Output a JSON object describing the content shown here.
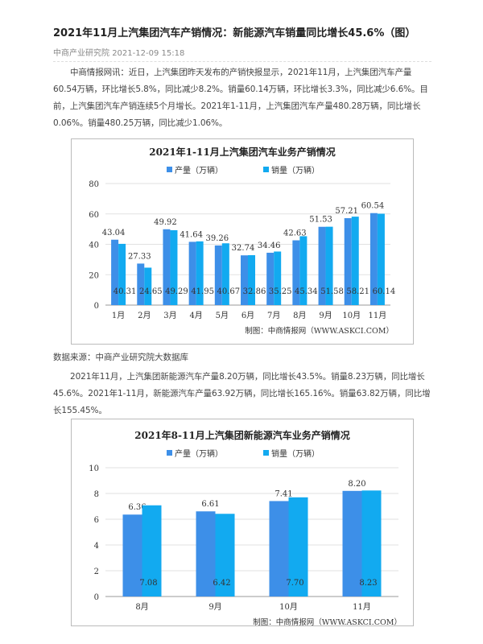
{
  "article": {
    "title": "2021年11月上汽集团汽车产销情况：新能源汽车销量同比增长45.6%（图）",
    "source": "中商产业研究院",
    "datetime": "2021-12-09 15:18",
    "para1": "中商情报网讯：近日，上汽集团昨天发布的产销快报显示，2021年11月，上汽集团汽车产量60.54万辆，环比增长5.8%，同比减少8.2%。销量60.14万辆，环比增长3.3%，同比减少6.6%。目前，上汽集团汽车产销连续5个月增长。2021年1-11月，上汽集团汽车产量480.28万辆，同比增长0.06%。销量480.25万辆，同比减少1.06%。",
    "data_source": "数据来源：中商产业研究院大数据库",
    "para2": "2021年11月，上汽集团新能源汽车产量8.20万辆，同比增长43.5%。销量8.23万辆，同比增长45.6%。2021年1-11月，新能源汽车产量63.92万辆，同比增长165.16%。销量63.82万辆，同比增长155.45%。"
  },
  "colors": {
    "production": "#3d8fe8",
    "sales": "#12aaf0"
  },
  "chart_data": [
    {
      "type": "bar",
      "title": "2021年1-11月上汽集团汽车业务产销情况",
      "categories": [
        "1月",
        "2月",
        "3月",
        "4月",
        "5月",
        "6月",
        "7月",
        "8月",
        "9月",
        "10月",
        "11月"
      ],
      "series": [
        {
          "name": "产量（万辆）",
          "values": [
            43.04,
            27.33,
            49.92,
            41.64,
            39.26,
            32.74,
            34.46,
            42.63,
            51.53,
            57.21,
            60.54
          ]
        },
        {
          "name": "销量（万辆）",
          "values": [
            40.31,
            24.65,
            49.29,
            41.95,
            40.67,
            32.86,
            35.25,
            45.34,
            51.58,
            58.21,
            60.14
          ]
        }
      ],
      "yticks": [
        0,
        20,
        40,
        60,
        80
      ],
      "ylim": [
        0,
        80
      ],
      "credit": "制图：中商情报网（WWW.ASKCI.COM）"
    },
    {
      "type": "bar",
      "title": "2021年8-11月上汽集团新能源汽车业务产销情况",
      "categories": [
        "8月",
        "9月",
        "10月",
        "11月"
      ],
      "series": [
        {
          "name": "产量（万辆）",
          "values": [
            6.36,
            6.61,
            7.41,
            8.2
          ]
        },
        {
          "name": "销量（万辆）",
          "values": [
            7.08,
            6.42,
            7.7,
            8.23
          ]
        }
      ],
      "yticks": [
        0,
        2,
        4,
        6,
        8,
        10
      ],
      "ylim": [
        0,
        10
      ],
      "credit": "制图：中商情报网（WWW.ASKCI.COM）"
    }
  ]
}
